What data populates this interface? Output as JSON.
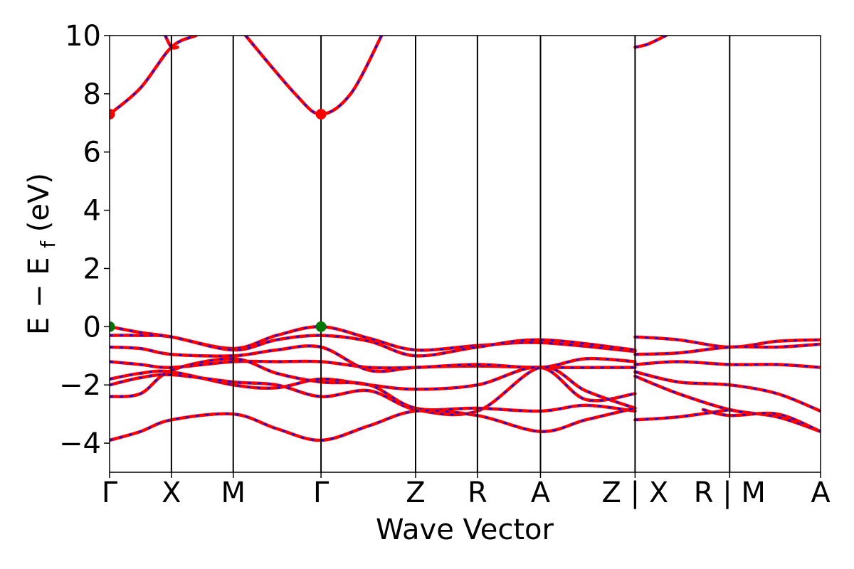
{
  "chart_data": {
    "type": "line",
    "title": "",
    "xlabel": "Wave Vector",
    "ylabel": {
      "main": "E − E",
      "sub": "f",
      "unit": "(eV)"
    },
    "ylim": [
      -5,
      10
    ],
    "yticks": [
      {
        "value": 10,
        "label": "10"
      },
      {
        "value": 8,
        "label": "8"
      },
      {
        "value": 6,
        "label": "6"
      },
      {
        "value": 4,
        "label": "4"
      },
      {
        "value": 2,
        "label": "2"
      },
      {
        "value": 0,
        "label": "0"
      },
      {
        "value": -2,
        "label": "−2"
      },
      {
        "value": -4,
        "label": "−4"
      }
    ],
    "xlim": [
      0,
      11.5
    ],
    "kpoint_labels": [
      {
        "x": 0,
        "label": "Γ"
      },
      {
        "x": 1,
        "label": "X"
      },
      {
        "x": 2,
        "label": "M"
      },
      {
        "x": 3.42,
        "label": "Γ"
      },
      {
        "x": 4.95,
        "label": "Z"
      },
      {
        "x": 5.95,
        "label": "R"
      },
      {
        "x": 6.97,
        "label": "A"
      },
      {
        "x": 8.5,
        "label": "Z | X"
      },
      {
        "x": 10.03,
        "label": "R | M"
      },
      {
        "x": 11.5,
        "label": "A"
      }
    ],
    "grid": false,
    "legend": "none",
    "line_colors": {
      "band": "#ff0000",
      "overlay": "#0000ff",
      "axes": "#000000"
    },
    "extrema_points": [
      {
        "x": 0,
        "y": 7.3,
        "kind": "cbm",
        "color": "#ff0000"
      },
      {
        "x": 3.42,
        "y": 7.3,
        "kind": "cbm",
        "color": "#ff0000"
      },
      {
        "x": 0,
        "y": 0.0,
        "kind": "vbm",
        "color": "#007700"
      },
      {
        "x": 3.42,
        "y": 0.0,
        "kind": "vbm",
        "color": "#007700"
      }
    ],
    "bands": [
      {
        "name": "",
        "points": [
          [
            0,
            7.3
          ],
          [
            0.5,
            8.2
          ],
          [
            1,
            9.6
          ],
          [
            1.4,
            10.0
          ]
        ]
      },
      {
        "name": "",
        "points": [
          [
            0.9,
            10.0
          ],
          [
            1,
            9.6
          ],
          [
            1.1,
            9.6
          ]
        ]
      },
      {
        "name": "",
        "points": [
          [
            2.2,
            10.0
          ],
          [
            3.0,
            8.0
          ],
          [
            3.42,
            7.3
          ],
          [
            3.9,
            8.0
          ],
          [
            4.4,
            10.0
          ]
        ]
      },
      {
        "name": "",
        "points": [
          [
            8.5,
            9.6
          ],
          [
            8.7,
            9.7
          ],
          [
            9.0,
            10.0
          ]
        ]
      },
      {
        "name": "",
        "points": [
          [
            0,
            0.0
          ],
          [
            0.5,
            -0.2
          ],
          [
            1,
            -0.35
          ],
          [
            2,
            -0.75
          ],
          [
            2.7,
            -0.3
          ],
          [
            3.42,
            0.0
          ],
          [
            4.2,
            -0.4
          ],
          [
            4.95,
            -0.8
          ],
          [
            5.95,
            -0.65
          ],
          [
            6.97,
            -0.55
          ],
          [
            8.5,
            -0.85
          ]
        ]
      },
      {
        "name": "",
        "points": [
          [
            0,
            -0.3
          ],
          [
            0.5,
            -0.3
          ],
          [
            1,
            -0.35
          ],
          [
            2,
            -0.8
          ],
          [
            2.7,
            -0.45
          ],
          [
            3.42,
            -0.3
          ],
          [
            4.2,
            -0.5
          ],
          [
            4.95,
            -1.0
          ],
          [
            5.95,
            -0.7
          ],
          [
            6.97,
            -0.45
          ],
          [
            8.5,
            -0.8
          ]
        ]
      },
      {
        "name": "",
        "points": [
          [
            0,
            -0.7
          ],
          [
            0.5,
            -0.75
          ],
          [
            1,
            -0.95
          ],
          [
            2,
            -1.0
          ],
          [
            2.7,
            -0.8
          ],
          [
            3.42,
            -0.7
          ],
          [
            4.2,
            -1.5
          ],
          [
            4.95,
            -1.4
          ],
          [
            5.95,
            -1.35
          ],
          [
            6.97,
            -1.4
          ],
          [
            8.5,
            -1.4
          ]
        ]
      },
      {
        "name": "",
        "points": [
          [
            0,
            -1.2
          ],
          [
            0.5,
            -1.3
          ],
          [
            1,
            -1.4
          ],
          [
            2,
            -1.2
          ],
          [
            2.7,
            -1.2
          ],
          [
            3.42,
            -1.2
          ],
          [
            4.2,
            -1.4
          ],
          [
            4.95,
            -1.4
          ],
          [
            5.95,
            -1.3
          ],
          [
            6.97,
            -1.4
          ],
          [
            7.7,
            -1.1
          ],
          [
            8.5,
            -1.2
          ]
        ]
      },
      {
        "name": "",
        "points": [
          [
            0,
            -1.8
          ],
          [
            0.5,
            -1.6
          ],
          [
            1,
            -1.55
          ],
          [
            2,
            -2.0
          ],
          [
            2.7,
            -2.1
          ],
          [
            3.42,
            -1.8
          ],
          [
            4.2,
            -2.0
          ],
          [
            4.95,
            -2.15
          ],
          [
            5.95,
            -2.0
          ],
          [
            6.97,
            -1.4
          ],
          [
            7.7,
            -2.5
          ],
          [
            8.5,
            -2.3
          ]
        ]
      },
      {
        "name": "",
        "points": [
          [
            0,
            -2.0
          ],
          [
            0.5,
            -1.75
          ],
          [
            1,
            -1.65
          ],
          [
            2,
            -1.9
          ],
          [
            2.7,
            -2.0
          ],
          [
            3.42,
            -2.4
          ],
          [
            4.2,
            -2.2
          ],
          [
            4.95,
            -2.85
          ],
          [
            5.95,
            -2.9
          ],
          [
            6.97,
            -1.4
          ],
          [
            7.7,
            -2.2
          ],
          [
            8.5,
            -2.8
          ]
        ]
      },
      {
        "name": "",
        "points": [
          [
            0,
            -2.4
          ],
          [
            0.5,
            -2.3
          ],
          [
            1,
            -1.5
          ],
          [
            2,
            -1.1
          ],
          [
            2.7,
            -1.6
          ],
          [
            3.42,
            -1.9
          ],
          [
            4.2,
            -2.0
          ],
          [
            4.95,
            -2.8
          ],
          [
            5.95,
            -2.8
          ],
          [
            6.97,
            -2.9
          ],
          [
            7.7,
            -2.7
          ],
          [
            8.5,
            -2.9
          ]
        ]
      },
      {
        "name": "",
        "points": [
          [
            0,
            -3.9
          ],
          [
            0.5,
            -3.6
          ],
          [
            1,
            -3.2
          ],
          [
            2,
            -3.0
          ],
          [
            2.7,
            -3.5
          ],
          [
            3.42,
            -3.9
          ],
          [
            4.2,
            -3.4
          ],
          [
            4.95,
            -2.9
          ],
          [
            5.95,
            -3.05
          ],
          [
            6.97,
            -3.6
          ],
          [
            7.7,
            -3.2
          ],
          [
            8.5,
            -2.8
          ]
        ]
      },
      {
        "name": "",
        "points": [
          [
            8.5,
            -0.35
          ],
          [
            9.2,
            -0.45
          ],
          [
            10.03,
            -0.7
          ],
          [
            10.8,
            -0.5
          ],
          [
            11.5,
            -0.45
          ]
        ]
      },
      {
        "name": "",
        "points": [
          [
            8.5,
            -0.95
          ],
          [
            9.2,
            -0.9
          ],
          [
            10.03,
            -0.7
          ],
          [
            10.8,
            -0.7
          ],
          [
            11.5,
            -0.6
          ]
        ]
      },
      {
        "name": "",
        "points": [
          [
            8.5,
            -1.3
          ],
          [
            9.2,
            -1.2
          ],
          [
            10.03,
            -1.3
          ],
          [
            10.8,
            -1.3
          ],
          [
            11.5,
            -1.4
          ]
        ]
      },
      {
        "name": "",
        "points": [
          [
            8.5,
            -1.55
          ],
          [
            9.2,
            -1.9
          ],
          [
            10.03,
            -2.0
          ],
          [
            10.8,
            -2.3
          ],
          [
            11.5,
            -2.9
          ]
        ]
      },
      {
        "name": "",
        "points": [
          [
            8.5,
            -1.7
          ],
          [
            9.2,
            -2.3
          ],
          [
            10.03,
            -2.85
          ],
          [
            10.8,
            -3.1
          ],
          [
            11.5,
            -3.6
          ]
        ]
      },
      {
        "name": "",
        "points": [
          [
            8.5,
            -3.2
          ],
          [
            9.2,
            -3.1
          ],
          [
            10.03,
            -2.85
          ]
        ]
      },
      {
        "name": "",
        "points": [
          [
            9.6,
            -2.85
          ],
          [
            10.03,
            -3.05
          ],
          [
            10.8,
            -3.0
          ],
          [
            11.5,
            -3.6
          ]
        ]
      }
    ]
  }
}
